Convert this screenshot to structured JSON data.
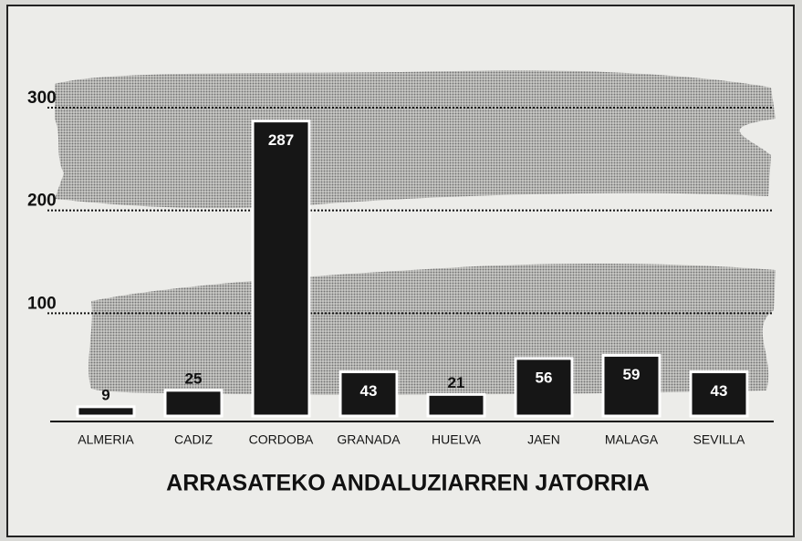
{
  "chart_data": {
    "type": "bar",
    "title": "ARRASATEKO ANDALUZIARREN JATORRIA",
    "categories": [
      "ALMERIA",
      "CADIZ",
      "CORDOBA",
      "GRANADA",
      "HUELVA",
      "JAEN",
      "MALAGA",
      "SEVILLA"
    ],
    "values": [
      9,
      25,
      287,
      43,
      21,
      56,
      59,
      43
    ],
    "color": "#161616",
    "ylim": [
      0,
      300
    ],
    "yticks": [
      100,
      200,
      300
    ],
    "grid": true
  }
}
